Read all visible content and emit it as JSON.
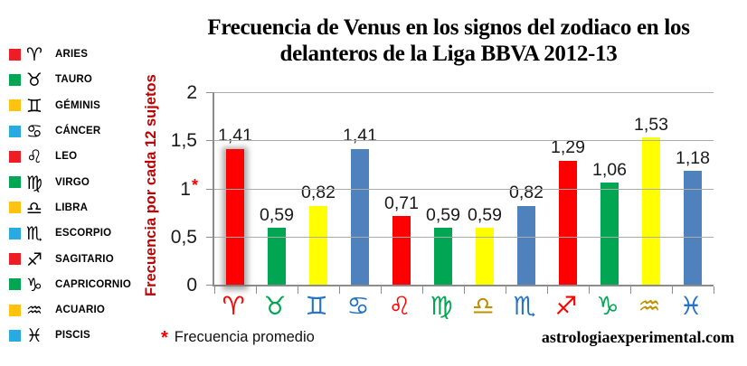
{
  "title": {
    "line1": "Frecuencia de Venus en los signos del zodiaco en los",
    "line2": "delanteros de la Liga BBVA 2012-13"
  },
  "legend": {
    "items": [
      {
        "id": "aries",
        "label": "ARIES",
        "symbol": "♈",
        "color": "#ee1c25"
      },
      {
        "id": "tauro",
        "label": "TAURO",
        "symbol": "♉",
        "color": "#00a651"
      },
      {
        "id": "geminis",
        "label": "GÉMINIS",
        "symbol": "♊",
        "color": "#ffc20e"
      },
      {
        "id": "cancer",
        "label": "CÁNCER",
        "symbol": "♋",
        "color": "#29abe2"
      },
      {
        "id": "leo",
        "label": "LEO",
        "symbol": "♌",
        "color": "#ee1c25"
      },
      {
        "id": "virgo",
        "label": "VIRGO",
        "symbol": "♍",
        "color": "#00a651"
      },
      {
        "id": "libra",
        "label": "LIBRA",
        "symbol": "♎",
        "color": "#ffc20e"
      },
      {
        "id": "escorpio",
        "label": "ESCORPIO",
        "symbol": "♏",
        "color": "#29abe2"
      },
      {
        "id": "sagitario",
        "label": "SAGITARIO",
        "symbol": "♐",
        "color": "#ee1c25"
      },
      {
        "id": "capricornio",
        "label": "CAPRICORNIO",
        "symbol": "♑",
        "color": "#00a651"
      },
      {
        "id": "acuario",
        "label": "ACUARIO",
        "symbol": "♒",
        "color": "#ffc20e"
      },
      {
        "id": "piscis",
        "label": "PISCIS",
        "symbol": "♓",
        "color": "#29abe2"
      }
    ]
  },
  "chart_data": {
    "type": "bar",
    "title": "Frecuencia de Venus en los signos del zodiaco en los delanteros de la Liga BBVA 2012-13",
    "categories": [
      "Aries",
      "Tauro",
      "Géminis",
      "Cáncer",
      "Leo",
      "Virgo",
      "Libra",
      "Escorpio",
      "Sagitario",
      "Capricornio",
      "Acuario",
      "Piscis"
    ],
    "category_symbols": [
      "♈",
      "♉",
      "♊",
      "♋",
      "♌",
      "♍",
      "♎",
      "♏",
      "♐",
      "♑",
      "♒",
      "♓"
    ],
    "symbol_colors": [
      "#ff0000",
      "#00a651",
      "#2272c8",
      "#2272c8",
      "#ff0000",
      "#00a651",
      "#bf9000",
      "#2272c8",
      "#ff0000",
      "#00a651",
      "#bf9000",
      "#2272c8"
    ],
    "values": [
      1.41,
      0.59,
      0.82,
      1.41,
      0.71,
      0.59,
      0.59,
      0.82,
      1.29,
      1.06,
      1.53,
      1.18
    ],
    "value_labels": [
      "1,41",
      "0,59",
      "0,82",
      "1,41",
      "0,71",
      "0,59",
      "0,59",
      "0,82",
      "1,29",
      "1,06",
      "1,53",
      "1,18"
    ],
    "bar_colors": [
      "#fe0000",
      "#00a651",
      "#ffff00",
      "#4f81bd",
      "#fe0000",
      "#00a651",
      "#ffff00",
      "#4f81bd",
      "#fe0000",
      "#00a651",
      "#ffff00",
      "#4f81bd"
    ],
    "highlighted_category": "Aries",
    "xlabel": "",
    "ylabel": "Frecuencia por cada 12 sujetos",
    "ylim": [
      0,
      2
    ],
    "yticks": [
      {
        "value": 0,
        "label": "0"
      },
      {
        "value": 0.5,
        "label": "0,5"
      },
      {
        "value": 1,
        "label": "1",
        "star": "*"
      },
      {
        "value": 1.5,
        "label": "1,5"
      },
      {
        "value": 2,
        "label": "2"
      }
    ],
    "grid": true,
    "legend_position": "left"
  },
  "footnote": {
    "asterisk": "*",
    "text": "Frecuencia promedio"
  },
  "website": "astrologiaexperimental.com"
}
